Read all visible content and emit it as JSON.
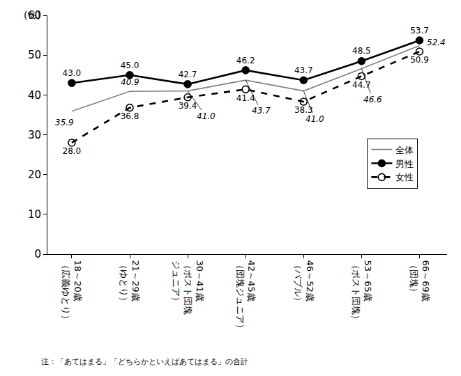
{
  "chart_data": {
    "type": "line",
    "ylabel": "(%)",
    "note": "注：「あてはまる」「どちらかといえばあてはまる」の合計",
    "categories": [
      "18～20歳（広義ゆとり）",
      "21～29歳（ゆとり）",
      "30～41歳（ポスト団塊ジュニア）",
      "42～45歳（団塊ジュニア）",
      "46～52歳（バブル）",
      "53～65歳（ポスト団塊）",
      "66～69歳（団塊）"
    ],
    "series": [
      {
        "name": "全体",
        "color": "#808080",
        "marker": "none",
        "line_style": "solid",
        "values": [
          35.9,
          40.9,
          41.0,
          43.7,
          41.0,
          46.6,
          52.4
        ],
        "value_labels": [
          "35.9",
          "40.9",
          "41.0",
          "43.7",
          "41.0",
          "46.6",
          "52.4"
        ]
      },
      {
        "name": "男性",
        "color": "#000000",
        "marker": "filled",
        "line_style": "solid",
        "values": [
          43.0,
          45.0,
          42.7,
          46.2,
          43.7,
          48.5,
          53.7
        ],
        "value_labels": [
          "43.0",
          "45.0",
          "42.7",
          "46.2",
          "43.7",
          "48.5",
          "53.7"
        ]
      },
      {
        "name": "女性",
        "color": "#000000",
        "marker": "open",
        "line_style": "dash",
        "values": [
          28.0,
          36.8,
          39.4,
          41.4,
          38.3,
          44.7,
          50.9
        ],
        "value_labels": [
          "28.0",
          "36.8",
          "39.4",
          "41.4",
          "38.3",
          "44.7",
          "50.9"
        ]
      }
    ],
    "ylim": [
      0,
      60
    ],
    "yticks": [
      0,
      10,
      20,
      30,
      40,
      50,
      60
    ],
    "grid": false,
    "legend": "right",
    "data_labels": true
  }
}
